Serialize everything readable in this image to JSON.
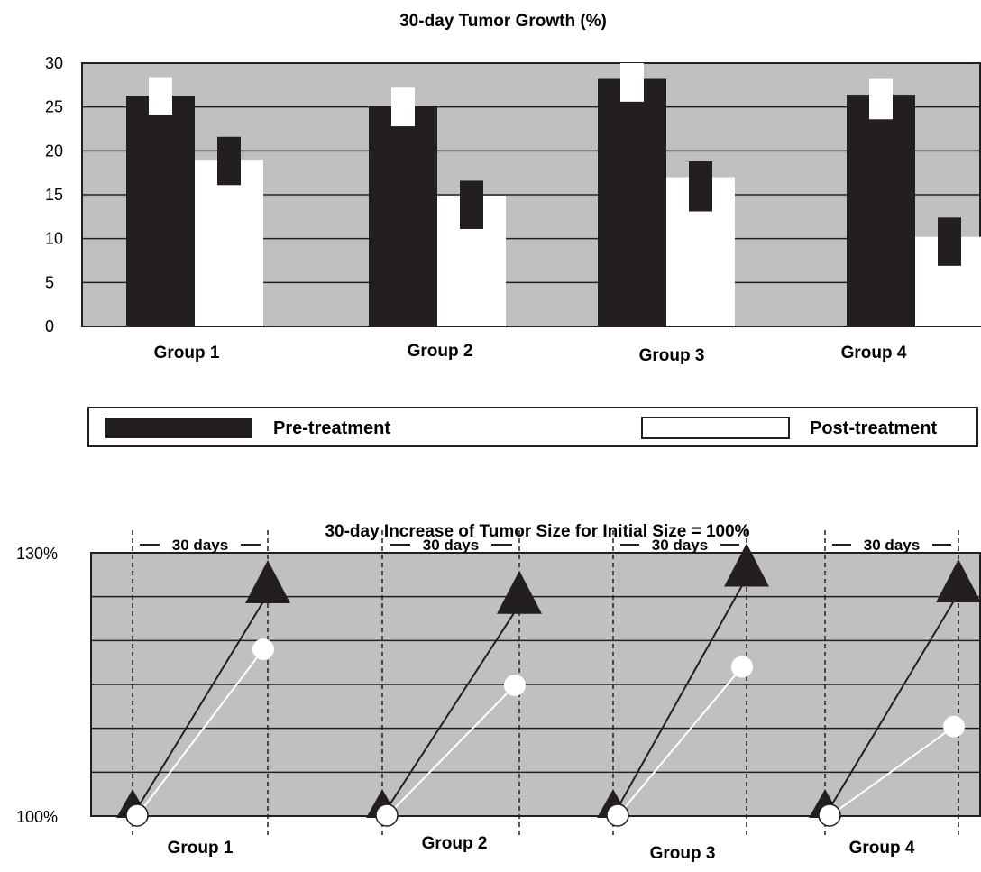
{
  "chart_data": [
    {
      "type": "bar",
      "title": "30-day Tumor Growth (%)",
      "categories": [
        "Group 1",
        "Group 2",
        "Group 3",
        "Group 4"
      ],
      "ylim": [
        0,
        30
      ],
      "yticks": [
        "0",
        "5",
        "10",
        "15",
        "20",
        "25",
        "30"
      ],
      "grid": true,
      "background_color": "#c0c0c0",
      "legend_position": "bottom",
      "series": [
        {
          "name": "Pre-treatment",
          "color": "#231f20",
          "values": [
            26.3,
            25.1,
            28.2,
            26.4
          ],
          "error_range": [
            [
              24.1,
              28.4
            ],
            [
              22.8,
              27.2
            ],
            [
              25.6,
              30.0
            ],
            [
              23.6,
              28.2
            ]
          ]
        },
        {
          "name": "Post-treatment",
          "color": "#ffffff",
          "values": [
            19.0,
            14.9,
            17.0,
            10.2
          ],
          "error_range": [
            [
              16.1,
              21.6
            ],
            [
              11.1,
              16.6
            ],
            [
              13.1,
              18.8
            ],
            [
              6.9,
              12.4
            ]
          ]
        }
      ]
    },
    {
      "type": "line",
      "title": "30-day Increase of Tumor Size for Initial Size = 100%",
      "categories": [
        "Group 1",
        "Group 2",
        "Group 3",
        "Group 4"
      ],
      "interval_label": "30 days",
      "ylim": [
        100,
        130
      ],
      "yticks": [
        "100%",
        "130%"
      ],
      "grid": true,
      "background_color": "#c0c0c0",
      "series": [
        {
          "marker": "triangle",
          "color": "#231f20",
          "start": [
            100,
            100,
            100,
            100
          ],
          "end": [
            126.3,
            125.1,
            128.2,
            126.4
          ]
        },
        {
          "marker": "circle",
          "color": "#ffffff",
          "start": [
            100,
            100,
            100,
            100
          ],
          "end": [
            119.0,
            114.9,
            117.0,
            110.2
          ]
        }
      ]
    }
  ]
}
